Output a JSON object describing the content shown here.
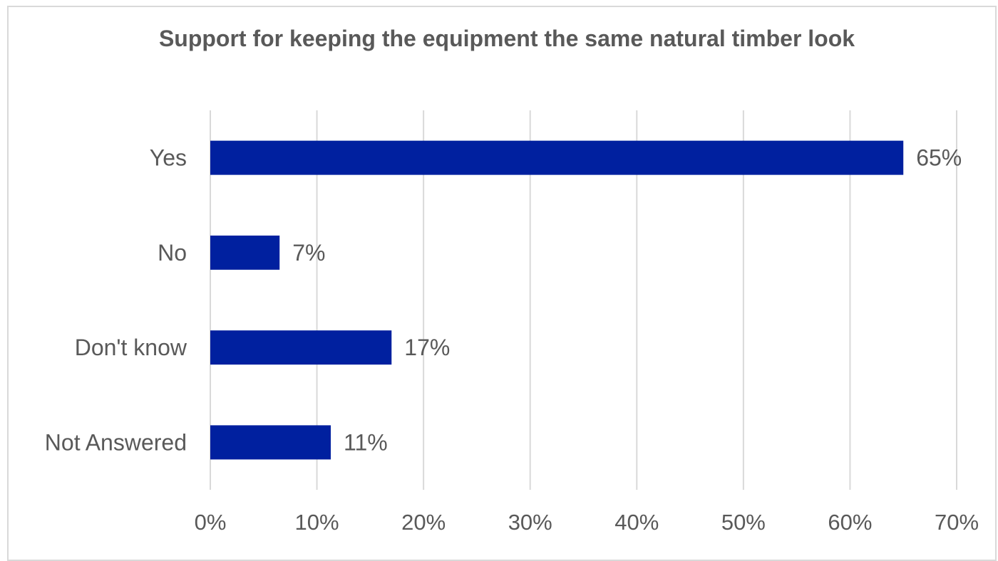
{
  "chart_data": {
    "type": "bar",
    "orientation": "horizontal",
    "title": "Support for keeping the equipment the same natural timber look",
    "categories": [
      "Yes",
      "No",
      "Don't know",
      "Not Answered"
    ],
    "values": [
      65,
      6.5,
      17,
      11.3
    ],
    "data_labels": [
      "65%",
      "7%",
      "17%",
      "11%"
    ],
    "x_ticks": [
      "0%",
      "10%",
      "20%",
      "30%",
      "40%",
      "50%",
      "60%",
      "70%"
    ],
    "xlim": [
      0,
      70
    ],
    "grid": true,
    "legend": "none",
    "bar_color": "#00209F",
    "grid_color": "#d9d9d9"
  }
}
